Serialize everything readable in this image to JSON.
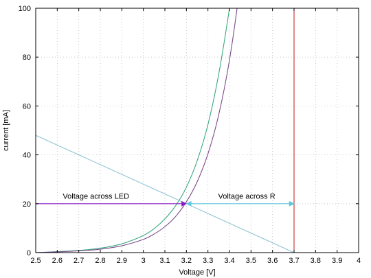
{
  "chart_data": {
    "type": "line",
    "title": "",
    "xlabel": "Voltage [V]",
    "ylabel": "current [mA]",
    "xlim": [
      2.5,
      4.0
    ],
    "ylim": [
      0,
      100
    ],
    "x_ticks": [
      "2.5",
      "2.6",
      "2.7",
      "2.8",
      "2.9",
      "3",
      "3.1",
      "3.2",
      "3.3",
      "3.4",
      "3.5",
      "3.6",
      "3.7",
      "3.8",
      "3.9",
      "4"
    ],
    "y_ticks": [
      "0",
      "20",
      "40",
      "60",
      "80",
      "100"
    ],
    "grid": true,
    "series": [
      {
        "color": "#3aa882",
        "x": [
          2.5,
          2.6,
          2.7,
          2.8,
          2.9,
          3.0,
          3.05,
          3.1,
          3.15,
          3.2,
          3.25,
          3.3,
          3.35,
          3.4,
          3.44
        ],
        "y": [
          0.0,
          0.4,
          0.9,
          1.8,
          3.6,
          7.0,
          9.8,
          13.8,
          19.2,
          26.8,
          37.6,
          52.4,
          73.0,
          100.0,
          125.0
        ]
      },
      {
        "color": "#7b4a8c",
        "x": [
          2.5,
          2.6,
          2.7,
          2.8,
          2.9,
          3.0,
          3.05,
          3.1,
          3.15,
          3.2,
          3.25,
          3.3,
          3.35,
          3.4,
          3.45,
          3.48
        ],
        "y": [
          0.0,
          0.3,
          0.7,
          1.4,
          2.8,
          5.4,
          7.6,
          10.6,
          14.8,
          20.8,
          29.0,
          40.4,
          56.4,
          78.8,
          110.0,
          135.0
        ]
      },
      {
        "color": "#8fc3d6",
        "x": [
          2.5,
          3.7
        ],
        "y": [
          48,
          0
        ]
      },
      {
        "color": "#cc2a2a",
        "x": [
          3.7,
          3.7
        ],
        "y": [
          0,
          100
        ]
      }
    ],
    "annotations": [
      {
        "text": "Voltage across LED",
        "color": "#8a1cc4",
        "from": [
          2.5,
          20
        ],
        "to": [
          3.2,
          20
        ],
        "label_at": [
          2.78,
          22
        ]
      },
      {
        "text": "Voltage across R",
        "color": "#5fc6de",
        "from": [
          3.2,
          20
        ],
        "to": [
          3.7,
          20
        ],
        "label_at": [
          3.48,
          22
        ]
      }
    ]
  }
}
